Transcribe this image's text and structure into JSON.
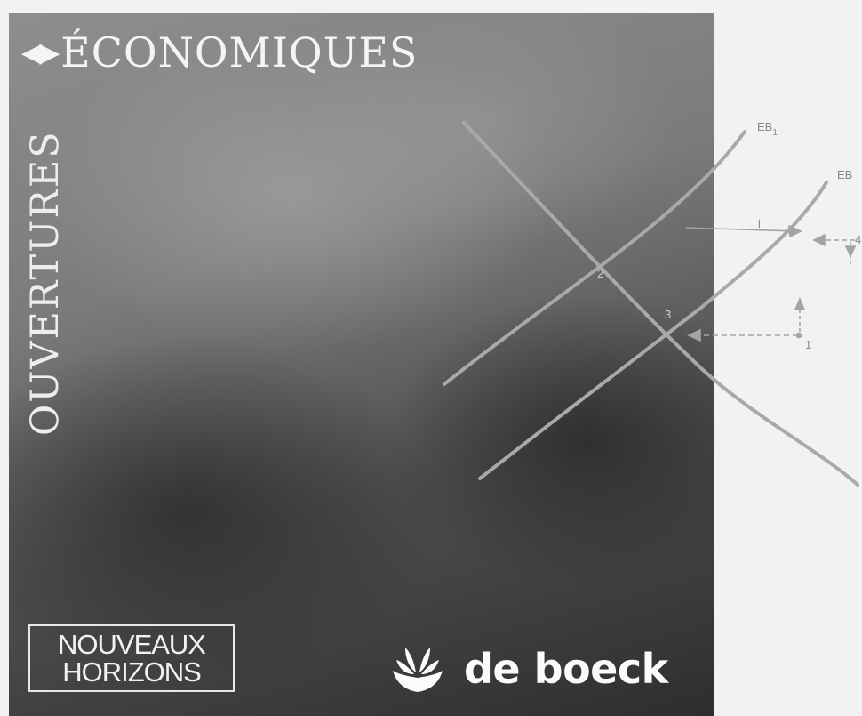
{
  "cover": {
    "series_title": "ÉCONOMIQUES",
    "series_vertical": "OUVERTURES",
    "collection_line1": "NOUVEAUX",
    "collection_line2": "HORIZONS",
    "publisher": "de boeck",
    "logo_icon": "leaves-logo-icon",
    "arrows_icon": "left-right-triangles-icon"
  },
  "diagram": {
    "curve_eb1": "EB",
    "curve_eb1_sub": "1",
    "curve_eb": "EB",
    "point_2": "2",
    "point_3": "3",
    "point_1": "1",
    "point_4": "4",
    "arrow_label": "i"
  },
  "colors": {
    "cover_dark": "#3a3a3a",
    "cover_mid": "#7d7d7d",
    "diagram_line": "#a9a9a9",
    "page_bg": "#f2f2f2"
  }
}
